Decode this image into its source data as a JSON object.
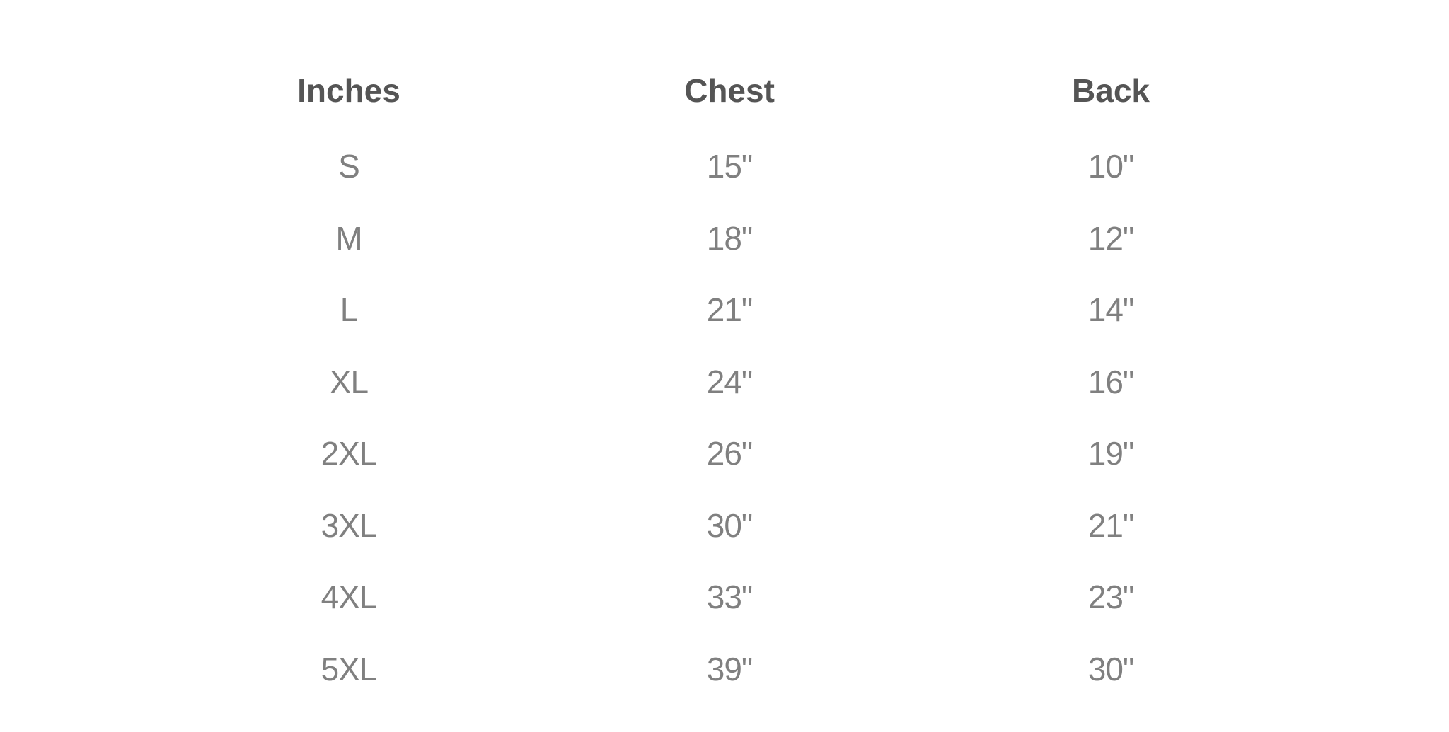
{
  "table": {
    "headers": [
      "Inches",
      "Chest",
      "Back"
    ],
    "rows": [
      [
        "S",
        "15\"",
        "10\""
      ],
      [
        "M",
        "18\"",
        "12\""
      ],
      [
        "L",
        "21\"",
        "14\""
      ],
      [
        "XL",
        "24\"",
        "16\""
      ],
      [
        "2XL",
        "26\"",
        "19\""
      ],
      [
        "3XL",
        "30\"",
        "21\""
      ],
      [
        "4XL",
        "33\"",
        "23\""
      ],
      [
        "5XL",
        "39\"",
        "30\""
      ]
    ]
  },
  "colors": {
    "header": "#555555",
    "cell": "#808080",
    "background": "#ffffff"
  }
}
